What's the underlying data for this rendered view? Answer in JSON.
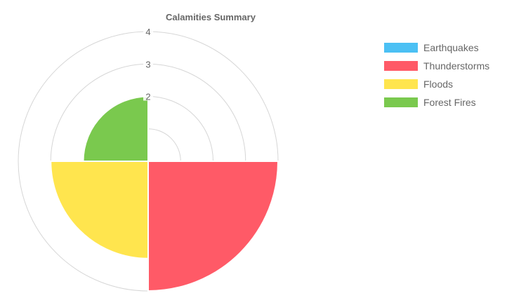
{
  "chart_data": {
    "type": "polarArea",
    "title": "Calamities Summary",
    "categories": [
      "Earthquakes",
      "Thunderstorms",
      "Floods",
      "Forest Fires"
    ],
    "values": [
      0,
      4,
      3,
      2
    ],
    "colors": [
      "#4BC0F4",
      "#FF5A67",
      "#FFE54E",
      "#7AC94E"
    ],
    "radial_axis": {
      "min": 0,
      "max": 4,
      "ticks": [
        1,
        2,
        3,
        4
      ],
      "tick_labels": [
        "",
        "2",
        "3",
        "4"
      ]
    },
    "legend": "right",
    "grid": true
  }
}
